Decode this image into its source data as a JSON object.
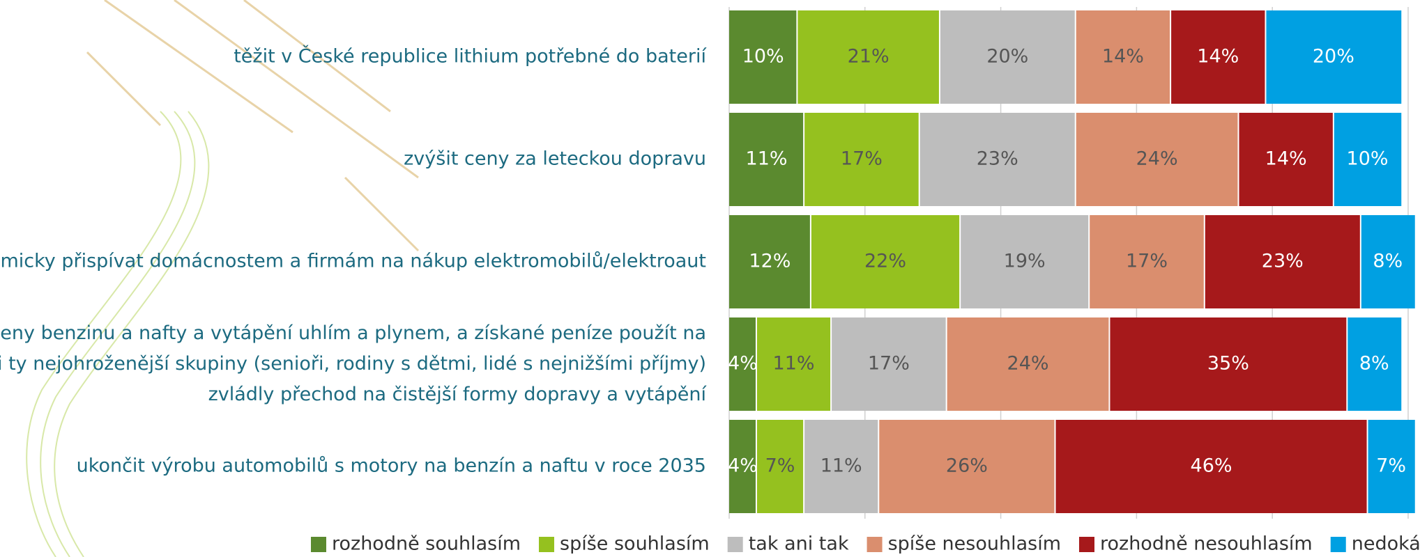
{
  "chart_data": {
    "type": "stacked-bar-horizontal",
    "categories": [
      "těžit v České republice lithium potřebné do baterií",
      "zvýšit ceny za leteckou dopravu",
      "ekonomicky přispívat domácnostem a firmám na nákup elektromobilů/elektroaut",
      "zvýšit ceny benzinu a nafty a vytápění uhlím a plynem, a získané peníze použít na\nto, aby i ty nejohroženější skupiny (senioři, rodiny s dětmi, lidé s nejnižšími příjmy)\nzvládly přechod na čistější formy dopravy a vytápění",
      "ukončit výrobu automobilů s motory na benzín a naftu v roce 2035"
    ],
    "series": [
      {
        "name": "rozhodně souhlasím",
        "color": "#5b8a2f",
        "values": [
          10,
          11,
          12,
          4,
          4
        ],
        "value_labels": [
          "10%",
          "11%",
          "12%",
          "4%",
          "4%"
        ]
      },
      {
        "name": "spíše souhlasím",
        "color": "#95c11f",
        "values": [
          21,
          17,
          22,
          11,
          7
        ],
        "value_labels": [
          "21%",
          "17%",
          "22%",
          "11%",
          "7%"
        ]
      },
      {
        "name": "tak ani tak",
        "color": "#bdbdbd",
        "values": [
          20,
          23,
          19,
          17,
          11
        ],
        "value_labels": [
          "20%",
          "23%",
          "19%",
          "17%",
          "11%"
        ]
      },
      {
        "name": "spíše nesouhlasím",
        "color": "#da8e6e",
        "values": [
          14,
          24,
          17,
          24,
          26
        ],
        "value_labels": [
          "14%",
          "24%",
          "17%",
          "24%",
          "26%"
        ]
      },
      {
        "name": "rozhodně nesouhlasím",
        "color": "#a6191b",
        "values": [
          14,
          14,
          23,
          35,
          46
        ],
        "value_labels": [
          "14%",
          "14%",
          "23%",
          "35%",
          "46%"
        ]
      },
      {
        "name": "nedokážu odpovědět",
        "color": "#00a0e2",
        "values": [
          20,
          10,
          8,
          8,
          7
        ],
        "value_labels": [
          "20%",
          "10%",
          "8%",
          "8%",
          "7%"
        ]
      }
    ],
    "xlim": [
      0,
      100
    ],
    "xticks": [
      0,
      20,
      40,
      60,
      80,
      100
    ],
    "grid": true,
    "legend": "bottom"
  }
}
